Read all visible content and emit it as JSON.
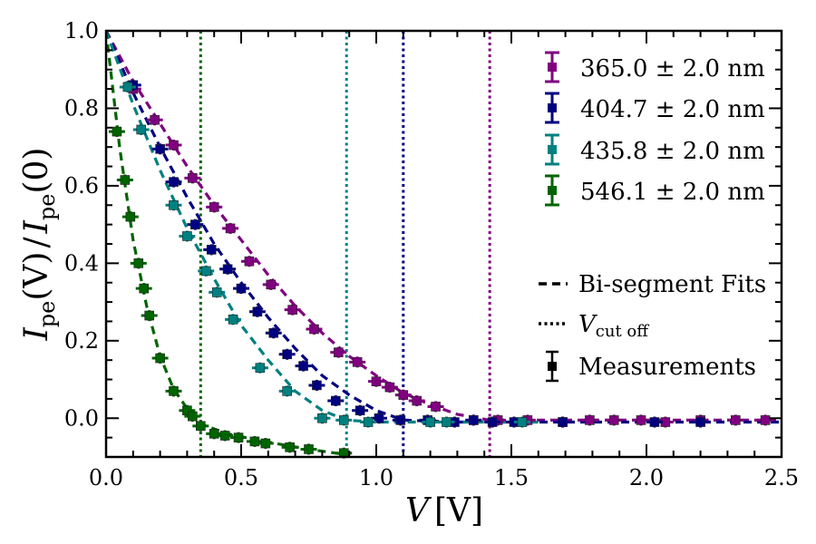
{
  "chart_data": {
    "type": "scatter",
    "title": "",
    "xlabel": {
      "main": "V",
      "unit": "[V]"
    },
    "ylabel": {
      "main": "I",
      "sub": "pe",
      "arg": "(V)",
      "sep": "/",
      "main2": "I",
      "sub2": "pe",
      "arg2": "(0)"
    },
    "xlim": [
      0.0,
      2.5
    ],
    "ylim": [
      -0.1,
      1.0
    ],
    "x_ticks": [
      "0.0",
      "0.5",
      "1.0",
      "1.5",
      "2.0",
      "2.5"
    ],
    "y_ticks": [
      "0.0",
      "0.2",
      "0.4",
      "0.6",
      "0.8",
      "1.0"
    ],
    "grid": false,
    "legend_position": "top-right",
    "series": [
      {
        "name": "365.0 ± 2.0 nm",
        "color": "#800080",
        "cutoff": 1.42,
        "x": [
          0.1,
          0.18,
          0.25,
          0.32,
          0.4,
          0.46,
          0.53,
          0.61,
          0.69,
          0.77,
          0.86,
          0.93,
          1.0,
          1.05,
          1.1,
          1.15,
          1.22,
          1.36,
          1.45,
          1.56,
          1.69,
          1.79,
          1.88,
          1.98,
          2.07,
          2.2,
          2.33,
          2.44
        ],
        "y": [
          0.85,
          0.77,
          0.705,
          0.62,
          0.545,
          0.49,
          0.405,
          0.345,
          0.28,
          0.23,
          0.17,
          0.145,
          0.095,
          0.08,
          0.06,
          0.045,
          0.03,
          -0.005,
          -0.005,
          -0.005,
          -0.01,
          -0.005,
          -0.005,
          -0.005,
          -0.01,
          -0.005,
          -0.005,
          -0.005
        ],
        "fit_x": [
          0.0,
          0.1,
          0.2,
          0.3,
          0.4,
          0.5,
          0.6,
          0.7,
          0.8,
          0.9,
          1.0,
          1.1,
          1.2,
          1.3,
          1.42,
          1.6,
          1.8,
          2.0,
          2.2,
          2.5
        ],
        "fit_y": [
          1.0,
          0.87,
          0.76,
          0.65,
          0.55,
          0.46,
          0.37,
          0.29,
          0.22,
          0.16,
          0.11,
          0.065,
          0.035,
          0.01,
          -0.005,
          -0.005,
          -0.005,
          -0.005,
          -0.005,
          -0.005
        ]
      },
      {
        "name": "404.7 ± 2.0 nm",
        "color": "#000080",
        "cutoff": 1.1,
        "x": [
          0.1,
          0.2,
          0.25,
          0.33,
          0.39,
          0.45,
          0.5,
          0.56,
          0.62,
          0.67,
          0.73,
          0.78,
          0.85,
          0.94,
          1.01,
          1.09,
          1.19,
          1.29,
          1.36,
          1.43,
          1.51,
          1.69,
          2.03,
          2.2
        ],
        "y": [
          0.86,
          0.695,
          0.61,
          0.5,
          0.435,
          0.385,
          0.335,
          0.275,
          0.22,
          0.165,
          0.135,
          0.085,
          0.045,
          0.02,
          0.0,
          -0.005,
          -0.005,
          -0.01,
          -0.005,
          -0.01,
          -0.01,
          -0.01,
          -0.01,
          -0.01
        ],
        "fit_x": [
          0.0,
          0.1,
          0.2,
          0.3,
          0.4,
          0.5,
          0.6,
          0.7,
          0.8,
          0.9,
          1.0,
          1.1,
          1.3,
          1.6,
          2.0,
          2.5
        ],
        "fit_y": [
          1.0,
          0.84,
          0.7,
          0.57,
          0.45,
          0.35,
          0.26,
          0.18,
          0.11,
          0.06,
          0.02,
          -0.005,
          -0.01,
          -0.01,
          -0.01,
          -0.01
        ]
      },
      {
        "name": "435.8 ± 2.0 nm",
        "color": "#008080",
        "cutoff": 0.89,
        "x": [
          0.08,
          0.13,
          0.25,
          0.3,
          0.37,
          0.41,
          0.47,
          0.57,
          0.67,
          0.8,
          0.88,
          0.97,
          1.2,
          1.26,
          1.54
        ],
        "y": [
          0.855,
          0.745,
          0.55,
          0.47,
          0.38,
          0.325,
          0.255,
          0.13,
          0.07,
          0.0,
          -0.005,
          -0.01,
          -0.01,
          -0.01,
          -0.01
        ],
        "fit_x": [
          0.0,
          0.1,
          0.2,
          0.3,
          0.4,
          0.5,
          0.6,
          0.7,
          0.8,
          0.89,
          1.0,
          1.3,
          1.6
        ],
        "fit_y": [
          1.0,
          0.81,
          0.64,
          0.49,
          0.36,
          0.24,
          0.15,
          0.07,
          0.02,
          -0.005,
          -0.01,
          -0.01,
          -0.01
        ]
      },
      {
        "name": "546.1 ± 2.0 nm",
        "color": "#006400",
        "cutoff": 0.35,
        "x": [
          0.04,
          0.07,
          0.09,
          0.12,
          0.14,
          0.16,
          0.2,
          0.25,
          0.3,
          0.32,
          0.35,
          0.4,
          0.44,
          0.49,
          0.55,
          0.59,
          0.68,
          0.75,
          0.88
        ],
        "y": [
          0.74,
          0.615,
          0.52,
          0.4,
          0.335,
          0.265,
          0.155,
          0.07,
          0.02,
          0.005,
          -0.02,
          -0.04,
          -0.045,
          -0.05,
          -0.06,
          -0.065,
          -0.075,
          -0.08,
          -0.09
        ],
        "fit_x": [
          0.0,
          0.05,
          0.1,
          0.15,
          0.2,
          0.25,
          0.3,
          0.35,
          0.45,
          0.55,
          0.65,
          0.75,
          0.9
        ],
        "fit_y": [
          1.0,
          0.7,
          0.46,
          0.29,
          0.16,
          0.075,
          0.025,
          -0.015,
          -0.04,
          -0.055,
          -0.068,
          -0.08,
          -0.095
        ]
      }
    ],
    "legend_styles": [
      {
        "label": "Bi-segment Fits",
        "style": "dashed"
      },
      {
        "label_main": "V",
        "label_sub": "cut off",
        "style": "dotted"
      },
      {
        "label": "Measurements",
        "style": "errorbar"
      }
    ]
  }
}
